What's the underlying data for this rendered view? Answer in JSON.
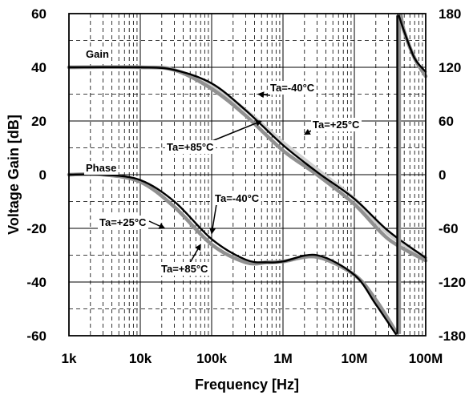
{
  "chart_data": {
    "type": "line",
    "title": "",
    "xlabel": "Frequency [Hz]",
    "ylabel_left": "Voltage Gain [dB]",
    "ylabel_right": "",
    "x_scale": "log",
    "x_range": [
      1000,
      100000000
    ],
    "x_ticks": [
      {
        "value": 1000,
        "label": "1k"
      },
      {
        "value": 10000,
        "label": "10k"
      },
      {
        "value": 100000,
        "label": "100k"
      },
      {
        "value": 1000000,
        "label": "1M"
      },
      {
        "value": 10000000,
        "label": "10M"
      },
      {
        "value": 100000000,
        "label": "100M"
      }
    ],
    "y_left_range": [
      -60,
      60
    ],
    "y_left_ticks": [
      60,
      40,
      20,
      0,
      -20,
      -40,
      -60
    ],
    "y_right_range": [
      -180,
      180
    ],
    "y_right_ticks": [
      180,
      120,
      60,
      0,
      -60,
      -120,
      -180
    ],
    "grid": true,
    "curve_labels": {
      "gain": "Gain",
      "phase": "Phase"
    },
    "series": [
      {
        "name": "Ta=-40°C",
        "quantity": "gain",
        "axis": "left",
        "color": "#d0d0d0",
        "points": [
          [
            1000,
            40
          ],
          [
            10000,
            40
          ],
          [
            30000,
            39
          ],
          [
            100000,
            33
          ],
          [
            300000,
            24
          ],
          [
            1000000,
            12
          ],
          [
            3000000,
            2
          ],
          [
            10000000,
            -9
          ],
          [
            30000000,
            -22
          ],
          [
            100000000,
            -31
          ]
        ]
      },
      {
        "name": "Ta=+85°C",
        "quantity": "gain",
        "axis": "left",
        "color": "#909090",
        "points": [
          [
            1000,
            40
          ],
          [
            10000,
            40
          ],
          [
            30000,
            39
          ],
          [
            100000,
            32
          ],
          [
            300000,
            22
          ],
          [
            1000000,
            9
          ],
          [
            3000000,
            0
          ],
          [
            10000000,
            -11
          ],
          [
            30000000,
            -24
          ],
          [
            100000000,
            -32
          ]
        ]
      },
      {
        "name": "Ta=+25°C",
        "quantity": "gain",
        "axis": "left",
        "color": "#000000",
        "points": [
          [
            1000,
            40
          ],
          [
            10000,
            40
          ],
          [
            30000,
            39
          ],
          [
            100000,
            34
          ],
          [
            300000,
            24
          ],
          [
            1000000,
            11
          ],
          [
            3000000,
            1
          ],
          [
            10000000,
            -9
          ],
          [
            30000000,
            -21
          ],
          [
            100000000,
            -31
          ]
        ]
      },
      {
        "name": "Ta=-40°C",
        "quantity": "phase",
        "axis": "right",
        "color": "#d0d0d0",
        "points": [
          [
            1000,
            0
          ],
          [
            3000,
            0
          ],
          [
            10000,
            -8
          ],
          [
            30000,
            -36
          ],
          [
            100000,
            -78
          ],
          [
            300000,
            -98
          ],
          [
            600000,
            -98
          ],
          [
            1000000,
            -97
          ],
          [
            3000000,
            -92
          ],
          [
            10000000,
            -112
          ],
          [
            20000000,
            -140
          ],
          [
            40000000,
            -178
          ],
          [
            45000000,
            178
          ],
          [
            50000000,
            160
          ],
          [
            70000000,
            130
          ],
          [
            100000000,
            110
          ]
        ]
      },
      {
        "name": "Ta=+85°C",
        "quantity": "phase",
        "axis": "right",
        "color": "#909090",
        "points": [
          [
            1000,
            0
          ],
          [
            3000,
            0
          ],
          [
            10000,
            -8
          ],
          [
            30000,
            -36
          ],
          [
            100000,
            -78
          ],
          [
            300000,
            -98
          ],
          [
            600000,
            -98
          ],
          [
            1000000,
            -97
          ],
          [
            3000000,
            -92
          ],
          [
            10000000,
            -112
          ],
          [
            20000000,
            -140
          ],
          [
            40000000,
            -178
          ],
          [
            45000000,
            178
          ],
          [
            50000000,
            160
          ],
          [
            70000000,
            130
          ],
          [
            100000000,
            110
          ]
        ]
      },
      {
        "name": "Ta=+25°C",
        "quantity": "phase",
        "axis": "right",
        "color": "#000000",
        "points": [
          [
            1000,
            0
          ],
          [
            3000,
            0
          ],
          [
            10000,
            -6
          ],
          [
            30000,
            -30
          ],
          [
            100000,
            -72
          ],
          [
            300000,
            -95
          ],
          [
            600000,
            -98
          ],
          [
            1000000,
            -97
          ],
          [
            3000000,
            -90
          ],
          [
            10000000,
            -112
          ],
          [
            20000000,
            -145
          ],
          [
            38000000,
            -178
          ],
          [
            42000000,
            178
          ],
          [
            50000000,
            160
          ],
          [
            70000000,
            130
          ],
          [
            100000000,
            115
          ]
        ]
      }
    ],
    "annotations": [
      {
        "text": "Ta=-40°C",
        "target": [
          450000,
          30
        ]
      },
      {
        "text": "Ta=+85°C",
        "target": [
          500000,
          20
        ]
      },
      {
        "text": "Ta=+25°C",
        "target": [
          2000000,
          15
        ]
      },
      {
        "text": "Ta=-40°C",
        "target": [
          100000,
          -22
        ]
      },
      {
        "text": "Ta=+25°C",
        "target": [
          22000,
          -20
        ]
      },
      {
        "text": "Ta=+85°C",
        "target": [
          70000,
          -26
        ]
      }
    ]
  }
}
